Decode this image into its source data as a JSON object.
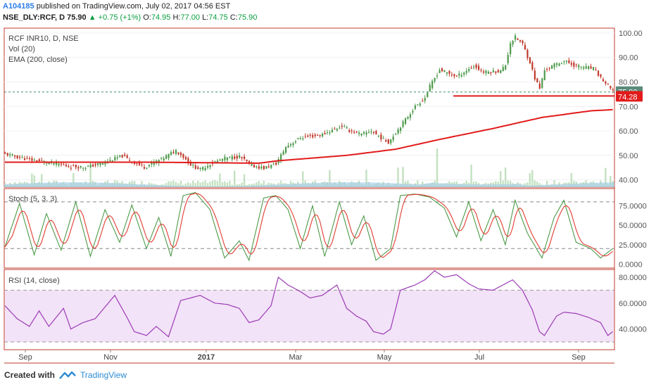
{
  "header": {
    "publisher": "A104185",
    "published_text": "published on TradingView.com, July 02, 2017 04:56 EST",
    "symbol": "NSE_DLY:RCF, D",
    "last": "75.90",
    "change": "+0.75 (+1%)",
    "o_label": "O:",
    "o_value": "74.95",
    "h_label": "H:",
    "h_value": "77.00",
    "l_label": "L:",
    "l_value": "74.75",
    "c_label": "C:",
    "c_value": "75.90"
  },
  "footer": {
    "created_with": "Created with",
    "brand": "TradingView"
  },
  "colors": {
    "up": "#4e9a4b",
    "down": "#c0392b",
    "ema": "#e21b1b",
    "stoch_k": "#4e9a4b",
    "stoch_d": "#e03c31",
    "rsi": "#9c3bb5",
    "rsi_band": "#f2e3f8",
    "volume": "#b8dcb6",
    "volume_blue": "#9fc9e8"
  },
  "chart_data": [
    {
      "type": "candlestick",
      "title": "RCF INR10, D, NSE",
      "indicators": [
        "Vol (20)",
        "EMA (200, close)"
      ],
      "y_ticks": [
        "100.00",
        "90.00",
        "80.00",
        "70.00",
        "60.00",
        "50.00",
        "40.00"
      ],
      "ylim": [
        37,
        102
      ],
      "last_price_label": "75.90",
      "support_label": "74.28",
      "support_level": 74.28,
      "last_price": 75.9,
      "x_labels": [
        "Sep",
        "Nov",
        "2017",
        "Mar",
        "May",
        "Jul",
        "Sep"
      ],
      "close_path": [
        [
          0,
          50.5
        ],
        [
          10,
          48.2
        ],
        [
          20,
          46.8
        ],
        [
          26,
          45.5
        ],
        [
          33,
          45.2
        ],
        [
          40,
          46.8
        ],
        [
          48,
          49.8
        ],
        [
          52,
          47.5
        ],
        [
          57,
          45.2
        ],
        [
          64,
          48.5
        ],
        [
          70,
          52.0
        ],
        [
          73,
          49.5
        ],
        [
          76,
          46.2
        ],
        [
          80,
          44.2
        ],
        [
          84,
          46.5
        ],
        [
          90,
          48.8
        ],
        [
          96,
          49.5
        ],
        [
          101,
          45.8
        ],
        [
          106,
          44.8
        ],
        [
          111,
          46.6
        ],
        [
          115,
          53.5
        ],
        [
          121,
          57.2
        ],
        [
          130,
          58.5
        ],
        [
          138,
          62.0
        ],
        [
          141,
          60.2
        ],
        [
          146,
          58.5
        ],
        [
          150,
          60.0
        ],
        [
          155,
          56.4
        ],
        [
          157,
          55.4
        ],
        [
          162,
          62.0
        ],
        [
          168,
          70.0
        ],
        [
          172,
          73.5
        ],
        [
          174,
          78.2
        ],
        [
          178,
          85.0
        ],
        [
          185,
          82.2
        ],
        [
          192,
          86.5
        ],
        [
          196,
          84.0
        ],
        [
          203,
          84.5
        ],
        [
          205,
          87.0
        ],
        [
          207,
          96.0
        ],
        [
          209,
          98.3
        ],
        [
          212,
          95.5
        ],
        [
          215,
          88.0
        ],
        [
          217,
          81.5
        ],
        [
          219,
          77.4
        ],
        [
          221,
          84.8
        ],
        [
          225,
          87.0
        ],
        [
          229,
          88.5
        ],
        [
          234,
          86.5
        ],
        [
          241,
          85.5
        ],
        [
          245,
          80.5
        ],
        [
          248,
          77.2
        ],
        [
          249,
          75.9
        ]
      ],
      "ema_path": [
        [
          0,
          47.2
        ],
        [
          60,
          47.2
        ],
        [
          104,
          46.8
        ],
        [
          112,
          47.8
        ],
        [
          140,
          50.0
        ],
        [
          160,
          52.5
        ],
        [
          178,
          56.5
        ],
        [
          200,
          61.0
        ],
        [
          220,
          65.5
        ],
        [
          240,
          68.2
        ],
        [
          249,
          68.7
        ]
      ]
    },
    {
      "type": "line",
      "title": "Stoch (5, 3, 3)",
      "y_ticks": [
        "75.0000",
        "50.0000",
        "25.0000",
        "0.0000"
      ],
      "ylim": [
        -5,
        97
      ],
      "levels": [
        80,
        20
      ]
    },
    {
      "type": "line",
      "title": "RSI (14, close)",
      "y_ticks": [
        "80.0000",
        "60.0000",
        "40.0000"
      ],
      "ylim": [
        24,
        86
      ],
      "levels": [
        70,
        30
      ],
      "path": [
        [
          0,
          58
        ],
        [
          5,
          48
        ],
        [
          10,
          42
        ],
        [
          14,
          54
        ],
        [
          18,
          42
        ],
        [
          24,
          56
        ],
        [
          27,
          40
        ],
        [
          32,
          45
        ],
        [
          37,
          48
        ],
        [
          45,
          66
        ],
        [
          50,
          49
        ],
        [
          53,
          38
        ],
        [
          58,
          35
        ],
        [
          62,
          42
        ],
        [
          67,
          34
        ],
        [
          72,
          62
        ],
        [
          80,
          66
        ],
        [
          86,
          60
        ],
        [
          91,
          59
        ],
        [
          96,
          56
        ],
        [
          100,
          45
        ],
        [
          104,
          47
        ],
        [
          109,
          58
        ],
        [
          112,
          80
        ],
        [
          116,
          74
        ],
        [
          121,
          69
        ],
        [
          125,
          64
        ],
        [
          130,
          66
        ],
        [
          136,
          74
        ],
        [
          140,
          56
        ],
        [
          144,
          50
        ],
        [
          148,
          46
        ],
        [
          151,
          38
        ],
        [
          155,
          36
        ],
        [
          158,
          40
        ],
        [
          162,
          70
        ],
        [
          168,
          74
        ],
        [
          172,
          78
        ],
        [
          176,
          85
        ],
        [
          180,
          80
        ],
        [
          185,
          82
        ],
        [
          190,
          75
        ],
        [
          194,
          71
        ],
        [
          200,
          70
        ],
        [
          205,
          75
        ],
        [
          208,
          78
        ],
        [
          212,
          70
        ],
        [
          216,
          55
        ],
        [
          219,
          38
        ],
        [
          221,
          35
        ],
        [
          226,
          50
        ],
        [
          229,
          53
        ],
        [
          234,
          52
        ],
        [
          239,
          49
        ],
        [
          244,
          45
        ],
        [
          247,
          35
        ],
        [
          249,
          38
        ]
      ]
    }
  ]
}
